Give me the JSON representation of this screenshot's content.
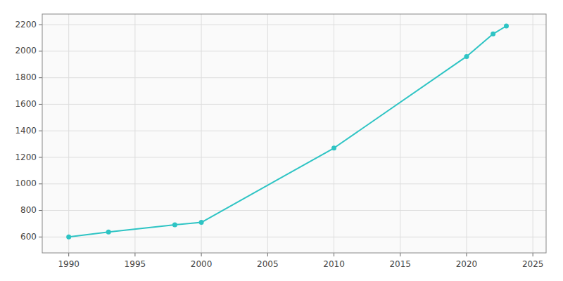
{
  "chart_data": {
    "type": "line",
    "x": [
      1990,
      1993,
      1998,
      2000,
      2010,
      2020,
      2022,
      2023
    ],
    "values": [
      600,
      637,
      692,
      710,
      1270,
      1960,
      2130,
      2190
    ],
    "color": "#2ec4c4",
    "marker": "circle",
    "xlim": [
      1988,
      2026
    ],
    "ylim": [
      480,
      2280
    ],
    "xticks": [
      1990,
      1995,
      2000,
      2005,
      2010,
      2015,
      2020,
      2025
    ],
    "yticks": [
      600,
      800,
      1000,
      1200,
      1400,
      1600,
      1800,
      2000,
      2200
    ],
    "grid": true
  }
}
